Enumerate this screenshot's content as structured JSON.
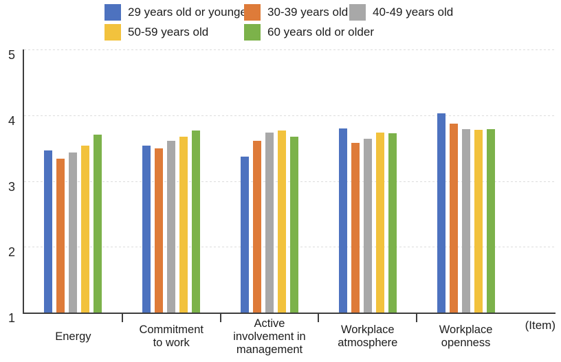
{
  "chart_data": {
    "type": "bar",
    "title": "",
    "legend_position": "top",
    "grid": "horizontal-dashed",
    "x_axis_unit_label": "(Item)",
    "y_axis": {
      "min": 1,
      "max": 5,
      "ticks": [
        "5",
        "4",
        "3",
        "2",
        "1"
      ]
    },
    "categories": [
      "Energy",
      "Commitment to work",
      "Active involvement in management",
      "Workplace atmosphere",
      "Workplace openness"
    ],
    "category_label_lines": [
      [
        "Energy"
      ],
      [
        "Commitment",
        "to work"
      ],
      [
        "Active",
        "involvement in",
        "management"
      ],
      [
        "Workplace",
        "atmosphere"
      ],
      [
        "Workplace",
        "openness"
      ]
    ],
    "series": [
      {
        "name": "29 years old or younger",
        "color": "#4D72BF",
        "values": [
          3.46,
          3.54,
          3.37,
          3.8,
          4.03
        ]
      },
      {
        "name": "30-39 years old",
        "color": "#DE7B39",
        "values": [
          3.34,
          3.5,
          3.61,
          3.58,
          3.87
        ]
      },
      {
        "name": "40-49 years old",
        "color": "#A8A8A8",
        "values": [
          3.43,
          3.61,
          3.74,
          3.64,
          3.79
        ]
      },
      {
        "name": "50-59 years old",
        "color": "#F2C23D",
        "values": [
          3.54,
          3.67,
          3.77,
          3.74,
          3.78
        ]
      },
      {
        "name": "60 years old or older",
        "color": "#7CB24A",
        "values": [
          3.7,
          3.77,
          3.67,
          3.73,
          3.79
        ]
      }
    ],
    "colors": {
      "axis": "#3d3d3d",
      "gridline": "#dcdcdc",
      "text": "#1c1c1c"
    }
  }
}
